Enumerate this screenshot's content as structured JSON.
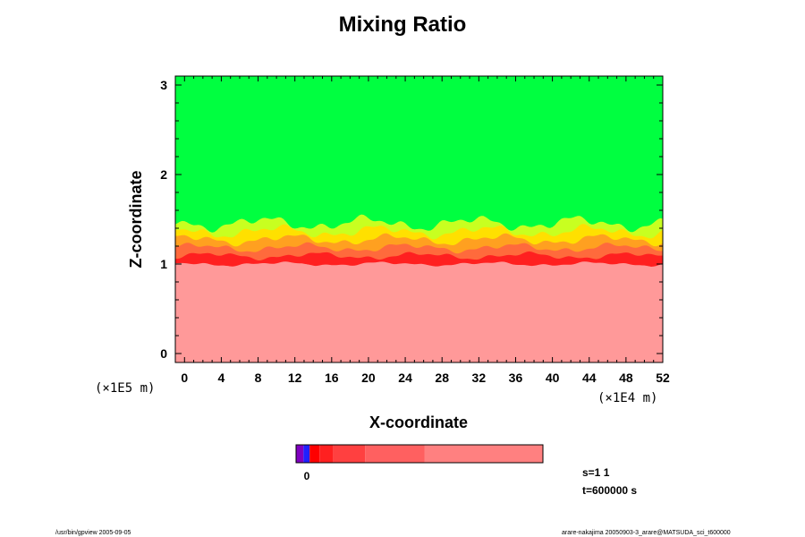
{
  "chart_data": {
    "type": "heatmap",
    "title": "Mixing Ratio",
    "xlabel": "X-coordinate",
    "ylabel": "Z-coordinate",
    "x_unit": "(×1E4 m)",
    "y_unit": "(×1E5 m)",
    "xlim": [
      -1,
      52
    ],
    "ylim": [
      -0.1,
      3.1
    ],
    "x_ticks": [
      0,
      4,
      8,
      12,
      16,
      20,
      24,
      28,
      32,
      36,
      40,
      44,
      48,
      52
    ],
    "y_ticks": [
      0,
      1,
      2,
      3
    ],
    "x_tick_labels": [
      "0",
      "4",
      "8",
      "12",
      "16",
      "20",
      "24",
      "28",
      "32",
      "36",
      "40",
      "44",
      "48",
      "52"
    ],
    "y_tick_labels": [
      "0",
      "1",
      "2",
      "3"
    ],
    "regions": [
      {
        "name": "lower-layer",
        "z_top": 1.0,
        "color": "#ff9999"
      },
      {
        "name": "transition-layer",
        "z_range": [
          1.0,
          1.5
        ],
        "colors": [
          "#ff2020",
          "#ff6a3c",
          "#ffa020",
          "#ffe000",
          "#c8ff20"
        ]
      },
      {
        "name": "upper-layer",
        "z_bottom": 1.5,
        "color": "#00ff40"
      }
    ],
    "colorbar": {
      "colors": [
        "#8000c0",
        "#2020ff",
        "#ff0000",
        "#ff2020",
        "#ff4040",
        "#ff6060",
        "#ff8080",
        "#ff9999"
      ],
      "stops": [
        0,
        0.03,
        0.055,
        0.095,
        0.15,
        0.28,
        0.52,
        1.0
      ],
      "tick_label": "0"
    },
    "grid": false
  },
  "info": {
    "s_label": "s=1 1",
    "t_label": "t=600000 s"
  },
  "footer": {
    "left": "/usr/bin/gpview 2005-09-05",
    "right": "arare-nakajima 20050903-3_arare@MATSUDA_sci_t600000"
  }
}
